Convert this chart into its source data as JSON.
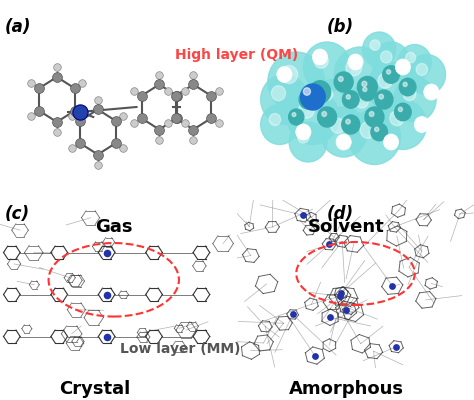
{
  "panels": [
    {
      "label": "(a)",
      "caption": "Gas",
      "type": "gas"
    },
    {
      "label": "(b)",
      "caption": "Solvent",
      "type": "solvent"
    },
    {
      "label": "(c)",
      "caption": "Crystal",
      "type": "crystal"
    },
    {
      "label": "(d)",
      "caption": "Amorphous",
      "type": "amorphous"
    }
  ],
  "annotation_high": "High layer (QM)",
  "annotation_low": "Low layer (MM)",
  "annotation_high_color": "#FF4444",
  "annotation_low_color": "#555555",
  "label_fontsize": 12,
  "caption_fontsize": 13,
  "annotation_fontsize": 10,
  "background": "#ffffff",
  "label_bold": true,
  "caption_bold": true
}
